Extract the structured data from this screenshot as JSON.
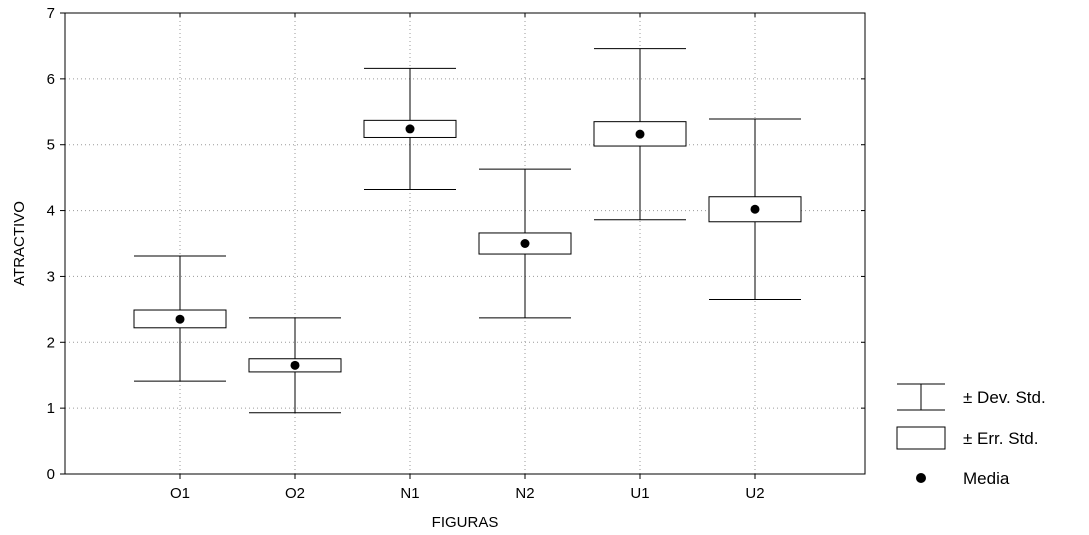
{
  "chart_data": {
    "type": "boxplot",
    "xlabel": "FIGURAS",
    "ylabel": "ATRACTIVO",
    "ylim": [
      0,
      7
    ],
    "yticks": [
      "0",
      "1",
      "2",
      "3",
      "4",
      "5",
      "6",
      "7"
    ],
    "grid": true,
    "legend_position": "right",
    "categories": [
      "O1",
      "O2",
      "N1",
      "N2",
      "U1",
      "U2"
    ],
    "mean": [
      2.35,
      1.65,
      5.24,
      3.5,
      5.16,
      4.02
    ],
    "err_low": [
      2.22,
      1.55,
      5.11,
      3.34,
      4.98,
      3.83
    ],
    "err_high": [
      2.49,
      1.75,
      5.37,
      3.66,
      5.35,
      4.21
    ],
    "dev_low": [
      1.41,
      0.93,
      4.32,
      2.37,
      3.86,
      2.65
    ],
    "dev_high": [
      3.31,
      2.37,
      6.16,
      4.63,
      6.46,
      5.39
    ],
    "legend": [
      {
        "symbol": "whisker",
        "label": "± Dev. Std."
      },
      {
        "symbol": "box",
        "label": "± Err. Std."
      },
      {
        "symbol": "dot",
        "label": "Media"
      }
    ]
  }
}
